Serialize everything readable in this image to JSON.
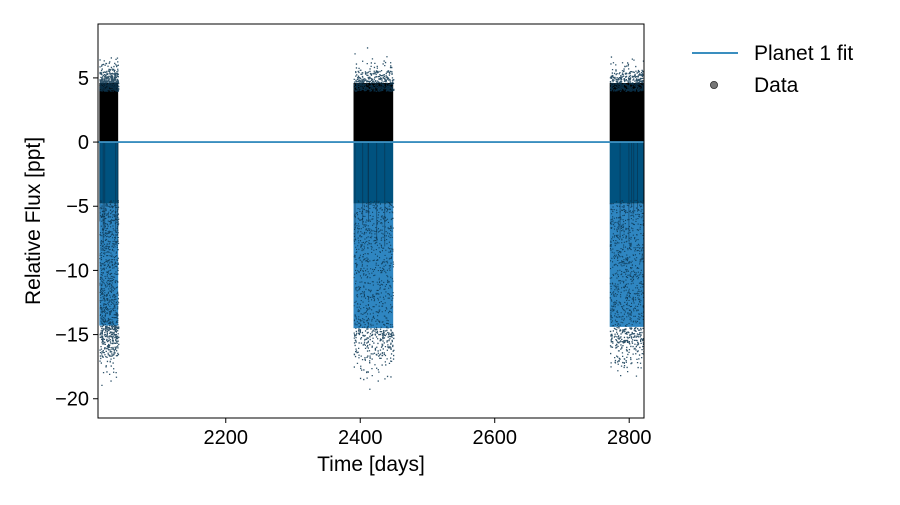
{
  "chart_data": {
    "type": "scatter",
    "title": "",
    "xlabel": "Time [days]",
    "ylabel": "Relative Flux [ppt]",
    "xlim": [
      2010,
      2822
    ],
    "ylim": [
      -21.5,
      9.2
    ],
    "xticks": [
      2200,
      2400,
      2600,
      2800
    ],
    "xtick_labels": [
      "2200",
      "2400",
      "2600",
      "2800"
    ],
    "yticks": [
      5,
      0,
      -5,
      -10,
      -15,
      -20
    ],
    "ytick_labels": [
      "5",
      "0",
      "−5",
      "−10",
      "−15",
      "−20"
    ],
    "grid": false,
    "legend": {
      "placement": "outside-right",
      "entries": [
        {
          "label": "Planet 1 fit",
          "kind": "line",
          "color": "#3a8ebf"
        },
        {
          "label": "Data",
          "kind": "marker",
          "color": "#777777"
        }
      ]
    },
    "series": [
      {
        "name": "Planet 1 fit",
        "type": "line",
        "color": "#3a8ebf",
        "x": [
          2010,
          2822
        ],
        "y": [
          0,
          0
        ]
      },
      {
        "name": "Data",
        "type": "scatter",
        "color": "#000000",
        "segments": [
          {
            "x_start": 2012,
            "x_end": 2040,
            "y_min": -19.2,
            "y_max": 6.9,
            "band_min": -14.3
          },
          {
            "x_start": 2390,
            "x_end": 2449,
            "y_min": -19.3,
            "y_max": 7.7,
            "band_min": -14.5
          },
          {
            "x_start": 2771,
            "x_end": 2822,
            "y_min": -18.5,
            "y_max": 7.4,
            "band_min": -14.4
          }
        ]
      }
    ],
    "transit_band": {
      "color_light": "#2f86c1",
      "color_dark": "#00527f",
      "y_top": 0,
      "y_bottom": -14.4
    }
  }
}
